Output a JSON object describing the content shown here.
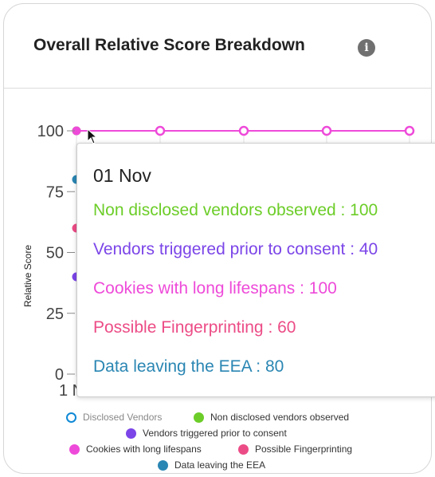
{
  "card": {
    "title": "Overall Relative Score Breakdown",
    "info_icon": "info-icon",
    "info_glyph": "i"
  },
  "chart_data": {
    "type": "line",
    "ylabel": "Relative Score",
    "ylim": [
      0,
      100
    ],
    "yticks": [
      "100",
      "75",
      "50",
      "25",
      "0"
    ],
    "xtick_visible": "1 N",
    "series": [
      {
        "name": "Disclosed Vendors",
        "color": "#0f89d6",
        "values": []
      },
      {
        "name": "Non disclosed vendors observed",
        "color": "#6ccd28",
        "values": [
          100
        ]
      },
      {
        "name": "Vendors triggered prior to consent",
        "color": "#7b45e8",
        "values": [
          40
        ]
      },
      {
        "name": "Cookies with long lifespans",
        "color": "#ee4ad9",
        "values": [
          100,
          100,
          100,
          100,
          100
        ]
      },
      {
        "name": "Possible Fingerprinting",
        "color": "#ec4c86",
        "values": [
          60
        ]
      },
      {
        "name": "Data leaving the EEA",
        "color": "#2a86b3",
        "values": [
          80
        ]
      }
    ]
  },
  "tooltip": {
    "date": "01 Nov",
    "rows": [
      {
        "text": "Non disclosed vendors observed : 100",
        "color": "#6ccd28"
      },
      {
        "text": "Vendors triggered prior to consent : 40",
        "color": "#7b45e8"
      },
      {
        "text": "Cookies with long lifespans : 100",
        "color": "#ee4ad9"
      },
      {
        "text": "Possible Fingerprinting : 60",
        "color": "#ec4c86"
      },
      {
        "text": "Data leaving the EEA : 80",
        "color": "#2a86b3"
      }
    ]
  },
  "legend": [
    {
      "label": "Disclosed Vendors",
      "color": "#0f89d6",
      "hollow": true
    },
    {
      "label": "Non disclosed vendors observed",
      "color": "#6ccd28",
      "hollow": false
    },
    {
      "label": "Vendors triggered prior to consent",
      "color": "#7b45e8",
      "hollow": false
    },
    {
      "label": "Cookies with long lifespans",
      "color": "#ee4ad9",
      "hollow": false
    },
    {
      "label": "Possible Fingerprinting",
      "color": "#ec4c86",
      "hollow": false
    },
    {
      "label": "Data leaving the EEA",
      "color": "#2a86b3",
      "hollow": false
    }
  ]
}
